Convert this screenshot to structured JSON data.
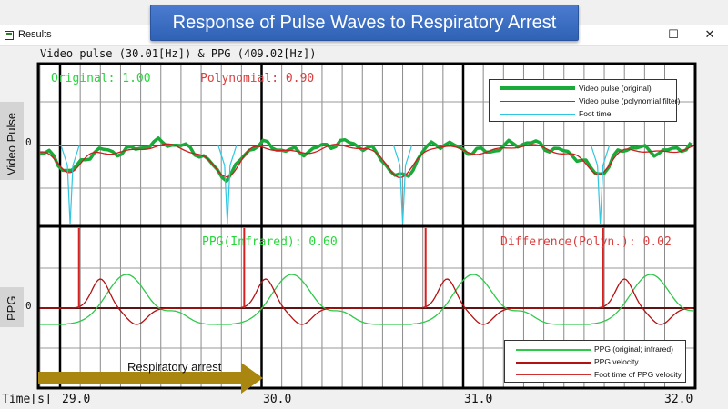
{
  "slide_title": "Response of Pulse Waves to Respiratory Arrest",
  "window": {
    "title": "Results",
    "buttons": {
      "minimize": "—",
      "maximize": "☐",
      "close": "✕"
    }
  },
  "caption": "Video pulse (30.01[Hz]) & PPG (409.02[Hz])",
  "panels": {
    "top": {
      "side_label": "Video Pulse",
      "zero_label": "0",
      "overlay_left": "Original: 1.00",
      "overlay_right": "Polynomial: 0.90",
      "legend": [
        {
          "label": "Video pulse (original)",
          "color": "#1aaa3a"
        },
        {
          "label": "Video pulse (polynomial filter)",
          "color": "#cc1f1f"
        },
        {
          "label": "Foot time",
          "color": "#2fc6e0"
        }
      ]
    },
    "bottom": {
      "side_label": "PPG",
      "zero_label": "0",
      "overlay_left": "PPG(Infrared): 0.60",
      "overlay_right": "Difference(Polyn.): 0.02",
      "legend": [
        {
          "label": "PPG (original; infrared)",
          "color": "#2ec94a"
        },
        {
          "label": "PPG velocity",
          "color": "#b21212"
        },
        {
          "label": "Foot time of PPG velocity",
          "color": "#d03030"
        }
      ]
    }
  },
  "annotation": {
    "label": "Respiratory arrest",
    "color": "#a8860f"
  },
  "axis": {
    "title": "Time[s]",
    "ticks": [
      "29.0",
      "30.0",
      "31.0",
      "32.0"
    ],
    "tick_values": [
      29.0,
      30.0,
      31.0,
      32.0
    ]
  },
  "colors": {
    "video_original": "#1aaa3a",
    "video_poly": "#cc1f1f",
    "foot_time": "#2fc6e0",
    "ppg": "#2ec94a",
    "ppg_velocity": "#b21212",
    "baseline_top": "#1d6b86",
    "baseline_bottom": "#5a1414"
  }
}
